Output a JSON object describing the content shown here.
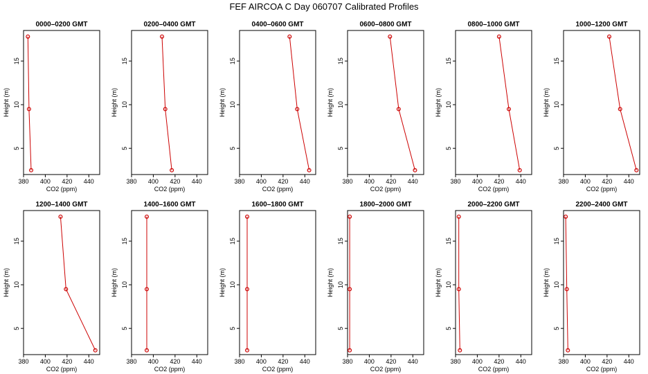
{
  "figure_title": "FEF AIRCOA C  Day 060707  Calibrated Profiles",
  "chart_data": {
    "type": "line",
    "title": "FEF AIRCOA C  Day 060707  Calibrated Profiles",
    "xlabel": "CO2 (ppm)",
    "ylabel": "Height (m)",
    "xlim": [
      380,
      450
    ],
    "ylim": [
      2,
      18.5
    ],
    "x_ticks": [
      "380",
      "400",
      "420",
      "440"
    ],
    "y_ticks": [
      "5",
      "10",
      "15"
    ],
    "x_tick_values": [
      380,
      400,
      420,
      440
    ],
    "y_tick_values": [
      5,
      10,
      15
    ],
    "grid": false,
    "series": [
      {
        "name": "0000–0200 GMT",
        "points": [
          {
            "x": 384,
            "y": 17.8
          },
          {
            "x": 385,
            "y": 9.5
          },
          {
            "x": 387,
            "y": 2.5
          }
        ]
      },
      {
        "name": "0200–0400 GMT",
        "points": [
          {
            "x": 408,
            "y": 17.8
          },
          {
            "x": 411,
            "y": 9.5
          },
          {
            "x": 417,
            "y": 2.5
          }
        ]
      },
      {
        "name": "0400–0600 GMT",
        "points": [
          {
            "x": 426,
            "y": 17.8
          },
          {
            "x": 433,
            "y": 9.5
          },
          {
            "x": 444,
            "y": 2.5
          }
        ]
      },
      {
        "name": "0600–0800 GMT",
        "points": [
          {
            "x": 419,
            "y": 17.8
          },
          {
            "x": 427,
            "y": 9.5
          },
          {
            "x": 442,
            "y": 2.5
          }
        ]
      },
      {
        "name": "0800–1000 GMT",
        "points": [
          {
            "x": 420,
            "y": 17.8
          },
          {
            "x": 429,
            "y": 9.5
          },
          {
            "x": 439,
            "y": 2.5
          }
        ]
      },
      {
        "name": "1000–1200 GMT",
        "points": [
          {
            "x": 422,
            "y": 17.8
          },
          {
            "x": 432,
            "y": 9.5
          },
          {
            "x": 447,
            "y": 2.5
          }
        ]
      },
      {
        "name": "1200–1400 GMT",
        "points": [
          {
            "x": 414,
            "y": 17.8
          },
          {
            "x": 419,
            "y": 9.5
          },
          {
            "x": 446,
            "y": 2.5
          }
        ]
      },
      {
        "name": "1400–1600 GMT",
        "points": [
          {
            "x": 394,
            "y": 17.8
          },
          {
            "x": 394,
            "y": 9.5
          },
          {
            "x": 394,
            "y": 2.5
          }
        ]
      },
      {
        "name": "1600–1800 GMT",
        "points": [
          {
            "x": 387,
            "y": 17.8
          },
          {
            "x": 387,
            "y": 9.5
          },
          {
            "x": 387,
            "y": 2.5
          }
        ]
      },
      {
        "name": "1800–2000 GMT",
        "points": [
          {
            "x": 382,
            "y": 17.8
          },
          {
            "x": 382,
            "y": 9.5
          },
          {
            "x": 382,
            "y": 2.5
          }
        ]
      },
      {
        "name": "2000–2200 GMT",
        "points": [
          {
            "x": 383,
            "y": 17.8
          },
          {
            "x": 383,
            "y": 9.5
          },
          {
            "x": 384,
            "y": 2.5
          }
        ]
      },
      {
        "name": "2200–2400 GMT",
        "points": [
          {
            "x": 382,
            "y": 17.8
          },
          {
            "x": 383,
            "y": 9.5
          },
          {
            "x": 384,
            "y": 2.5
          }
        ]
      }
    ]
  },
  "colors": {
    "series": "#cc0000",
    "axes": "#000000",
    "background": "#ffffff"
  }
}
